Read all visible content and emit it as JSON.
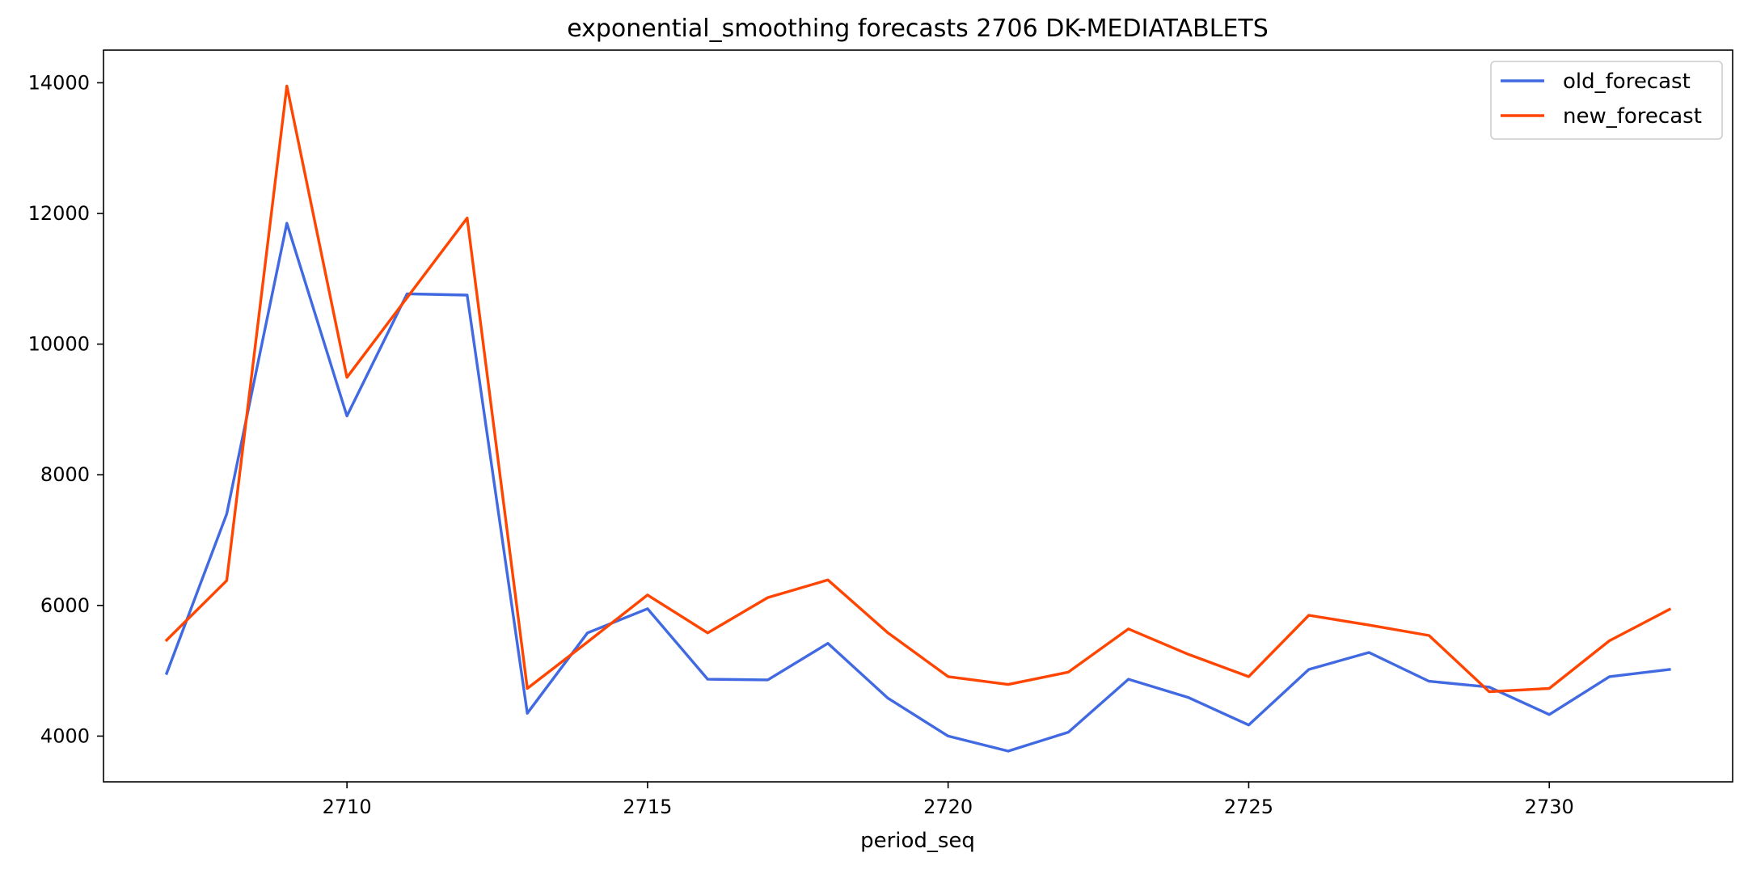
{
  "chart_data": {
    "type": "line",
    "title": "exponential_smoothing forecasts 2706 DK-MEDIATABLETS",
    "xlabel": "period_seq",
    "ylabel": "",
    "xlim": [
      2705.95,
      2733.05
    ],
    "ylim": [
      3300,
      14500
    ],
    "x_ticks": [
      2710,
      2715,
      2720,
      2725,
      2730
    ],
    "x_tick_labels": [
      "2710",
      "2715",
      "2720",
      "2725",
      "2730"
    ],
    "y_ticks": [
      4000,
      6000,
      8000,
      10000,
      12000,
      14000
    ],
    "y_tick_labels": [
      "4000",
      "6000",
      "8000",
      "10000",
      "12000",
      "14000"
    ],
    "grid": false,
    "legend_position": "upper right",
    "x": [
      2707,
      2708,
      2709,
      2710,
      2711,
      2712,
      2713,
      2714,
      2715,
      2716,
      2717,
      2718,
      2719,
      2720,
      2721,
      2722,
      2723,
      2724,
      2725,
      2726,
      2727,
      2728,
      2729,
      2730,
      2731,
      2732
    ],
    "series": [
      {
        "name": "old_forecast",
        "color": "#4169e1",
        "values": [
          4960,
          7400,
          11850,
          8900,
          10770,
          10750,
          4350,
          5580,
          5950,
          4870,
          4860,
          5420,
          4580,
          4000,
          3770,
          4060,
          4870,
          4590,
          4170,
          5020,
          5280,
          4840,
          4750,
          4330,
          4910,
          5020
        ]
      },
      {
        "name": "new_forecast",
        "color": "#ff4500",
        "values": [
          5470,
          6380,
          13950,
          9490,
          10710,
          11930,
          4730,
          5440,
          6160,
          5580,
          6120,
          6390,
          5580,
          4910,
          4790,
          4980,
          5640,
          5250,
          4910,
          5850,
          5700,
          5540,
          4680,
          4730,
          5460,
          5940
        ]
      }
    ]
  }
}
